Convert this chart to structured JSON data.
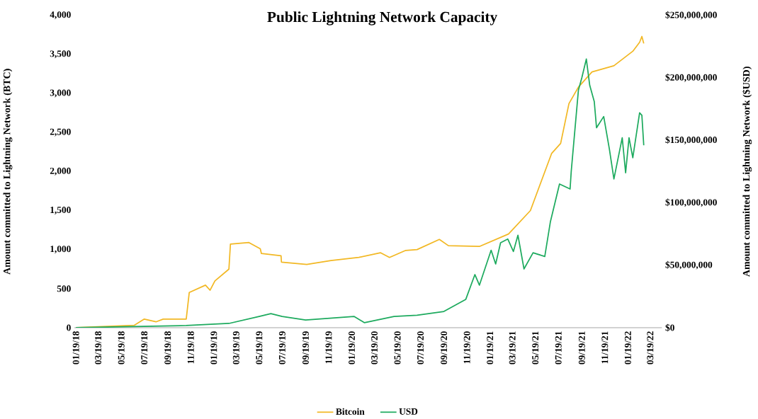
{
  "chart_data": {
    "type": "line",
    "title": "Public Lightning Network Capacity",
    "ylabel": "Amount committed to Lightning Network (BTC)",
    "y2label": "Amount committed to Lightning Network ($USD)",
    "xlim": [
      "2018-01-15",
      "2022-04-19"
    ],
    "xticks": [
      {
        "value": "2018-01-19",
        "label": "01/19/18"
      },
      {
        "value": "2018-03-19",
        "label": "03/19/18"
      },
      {
        "value": "2018-05-19",
        "label": "05/19/18"
      },
      {
        "value": "2018-07-19",
        "label": "07/19/18"
      },
      {
        "value": "2018-09-19",
        "label": "09/19/18"
      },
      {
        "value": "2018-11-19",
        "label": "11/19/18"
      },
      {
        "value": "2019-01-19",
        "label": "01/19/19"
      },
      {
        "value": "2019-03-19",
        "label": "03/19/19"
      },
      {
        "value": "2019-05-19",
        "label": "05/19/19"
      },
      {
        "value": "2019-07-19",
        "label": "07/19/19"
      },
      {
        "value": "2019-09-19",
        "label": "09/19/19"
      },
      {
        "value": "2019-11-19",
        "label": "11/19/19"
      },
      {
        "value": "2020-01-19",
        "label": "01/19/20"
      },
      {
        "value": "2020-03-19",
        "label": "03/19/20"
      },
      {
        "value": "2020-05-19",
        "label": "05/19/20"
      },
      {
        "value": "2020-07-19",
        "label": "07/19/20"
      },
      {
        "value": "2020-09-19",
        "label": "09/19/20"
      },
      {
        "value": "2020-11-19",
        "label": "11/19/20"
      },
      {
        "value": "2021-01-19",
        "label": "01/19/21"
      },
      {
        "value": "2021-03-19",
        "label": "03/19/21"
      },
      {
        "value": "2021-05-19",
        "label": "05/19/21"
      },
      {
        "value": "2021-07-19",
        "label": "07/19/21"
      },
      {
        "value": "2021-09-19",
        "label": "09/19/21"
      },
      {
        "value": "2021-11-19",
        "label": "11/19/21"
      },
      {
        "value": "2022-01-19",
        "label": "01/19/22"
      },
      {
        "value": "2022-03-19",
        "label": "03/19/22"
      }
    ],
    "ylim": [
      0,
      4000
    ],
    "yticks": [
      0,
      500,
      {
        "value": 1000,
        "label": "1,000"
      },
      {
        "value": 1500,
        "label": "1,500"
      },
      {
        "value": 2000,
        "label": "2,000"
      },
      {
        "value": 2500,
        "label": "2,500"
      },
      {
        "value": 3000,
        "label": "3,000"
      },
      {
        "value": 3500,
        "label": "3,500"
      },
      {
        "value": 4000,
        "label": "4,000"
      }
    ],
    "y2lim": [
      0,
      250000000
    ],
    "y2ticks": [
      {
        "value": 0,
        "label": "$0"
      },
      {
        "value": 50000000,
        "label": "$50,000,000"
      },
      {
        "value": 100000000,
        "label": "$100,000,000"
      },
      {
        "value": 150000000,
        "label": "$150,000,000"
      },
      {
        "value": 200000000,
        "label": "$200,000,000"
      },
      {
        "value": 250000000,
        "label": "$250,000,000"
      }
    ],
    "legend": "bottom",
    "series": [
      {
        "name": "Bitcoin",
        "color": "#f2b824",
        "x": [
          "2018-01-19",
          "2018-06-22",
          "2018-07-19",
          "2018-08-19",
          "2018-09-07",
          "2018-11-07",
          "2018-11-15",
          "2018-12-28",
          "2019-01-09",
          "2019-01-22",
          "2019-02-28",
          "2019-03-04",
          "2019-04-22",
          "2019-05-22",
          "2019-05-25",
          "2019-07-16",
          "2019-07-17",
          "2019-09-22",
          "2019-11-25",
          "2020-02-07",
          "2020-04-04",
          "2020-04-28",
          "2020-06-10",
          "2020-07-10",
          "2020-09-07",
          "2020-10-01",
          "2020-12-22",
          "2021-03-09",
          "2021-05-06",
          "2021-07-01",
          "2021-07-25",
          "2021-08-16",
          "2021-09-10",
          "2021-10-16",
          "2021-12-13",
          "2022-02-01",
          "2022-02-19",
          "2022-02-25",
          "2022-03-02"
        ],
        "values": [
          0,
          30,
          110,
          75,
          110,
          110,
          450,
          545,
          480,
          600,
          750,
          1070,
          1090,
          1010,
          950,
          920,
          840,
          810,
          860,
          900,
          960,
          900,
          990,
          1000,
          1130,
          1050,
          1040,
          1200,
          1500,
          2230,
          2360,
          2870,
          3080,
          3275,
          3355,
          3540,
          3655,
          3730,
          3640
        ]
      },
      {
        "name": "USD",
        "color": "#1daa5e",
        "axis": "y2",
        "x": [
          "2018-01-19",
          "2018-11-07",
          "2019-02-28",
          "2019-05-19",
          "2019-06-19",
          "2019-07-19",
          "2019-09-19",
          "2020-01-25",
          "2020-02-22",
          "2020-05-10",
          "2020-07-10",
          "2020-09-19",
          "2020-11-16",
          "2020-12-10",
          "2020-12-22",
          "2021-01-22",
          "2021-02-03",
          "2021-02-16",
          "2021-03-07",
          "2021-03-22",
          "2021-04-03",
          "2021-04-19",
          "2021-05-13",
          "2021-06-13",
          "2021-06-28",
          "2021-07-22",
          "2021-08-19",
          "2021-08-22",
          "2021-09-10",
          "2021-09-19",
          "2021-10-01",
          "2021-10-10",
          "2021-10-22",
          "2021-10-28",
          "2021-11-16",
          "2021-12-01",
          "2021-12-13",
          "2022-01-04",
          "2022-01-13",
          "2022-01-22",
          "2022-02-01",
          "2022-02-19",
          "2022-02-25",
          "2022-03-02"
        ],
        "values": [
          0,
          1700000,
          3400000,
          9000000,
          11300000,
          9000000,
          6200000,
          9000000,
          4000000,
          9000000,
          10000000,
          13000000,
          22700000,
          42500000,
          34000000,
          62000000,
          51000000,
          68000000,
          71000000,
          61000000,
          74000000,
          47000000,
          60000000,
          57000000,
          85000000,
          115000000,
          111000000,
          125000000,
          190000000,
          200000000,
          215000000,
          194000000,
          181000000,
          160000000,
          169000000,
          143000000,
          119000000,
          152000000,
          124000000,
          152000000,
          136000000,
          172000000,
          170000000,
          146000000
        ]
      }
    ]
  }
}
